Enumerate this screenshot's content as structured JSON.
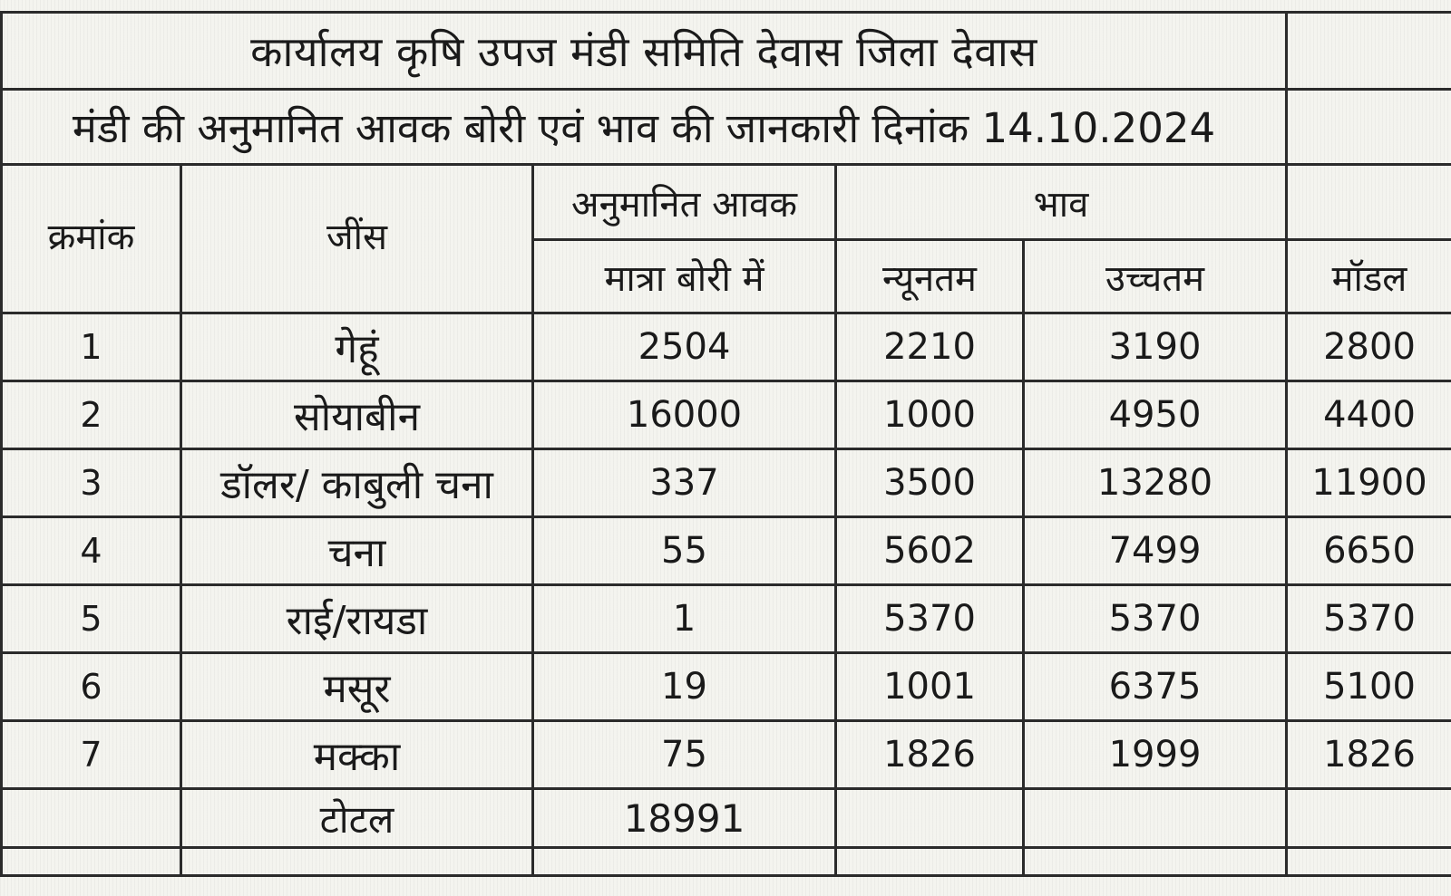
{
  "title": "कार्यालय कृषि उपज मंडी समिति देवास जिला देवास",
  "subtitle": "मंडी की अनुमानित आवक बोरी एवं भाव की जानकारी दिनांक 14.10.2024",
  "headers": {
    "serial": "क्रमांक",
    "crop": "जींस",
    "arrival_group": "अनुमानित आवक",
    "arrival_qty": "मात्रा बोरी में",
    "price_group": "भाव",
    "min": "न्यूनतम",
    "max": "उच्चतम",
    "model": "मॉडल"
  },
  "rows": [
    {
      "sn": "1",
      "crop": "गेहूं",
      "qty": "2504",
      "min": "2210",
      "max": "3190",
      "model": "2800"
    },
    {
      "sn": "2",
      "crop": "सोयाबीन",
      "qty": "16000",
      "min": "1000",
      "max": "4950",
      "model": "4400"
    },
    {
      "sn": "3",
      "crop": "डॉलर/ काबुली चना",
      "qty": "337",
      "min": "3500",
      "max": "13280",
      "model": "11900"
    },
    {
      "sn": "4",
      "crop": "चना",
      "qty": "55",
      "min": "5602",
      "max": "7499",
      "model": "6650"
    },
    {
      "sn": "5",
      "crop": "राई/रायडा",
      "qty": "1",
      "min": "5370",
      "max": "5370",
      "model": "5370"
    },
    {
      "sn": "6",
      "crop": "मसूर",
      "qty": "19",
      "min": "1001",
      "max": "6375",
      "model": "5100"
    },
    {
      "sn": "7",
      "crop": "मक्का",
      "qty": "75",
      "min": "1826",
      "max": "1999",
      "model": "1826"
    }
  ],
  "total": {
    "label": "टोटल",
    "qty": "18991"
  }
}
